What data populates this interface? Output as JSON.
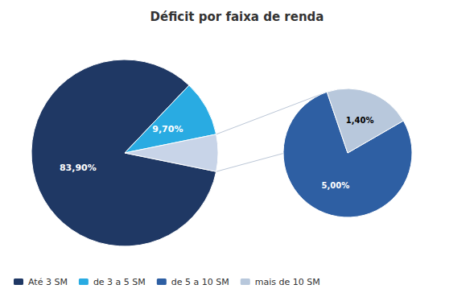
{
  "chart_data": [
    {
      "type": "pie",
      "title": "Déficit por faixa de renda",
      "categories": [
        "Até 3 SM",
        "de 3 a 5 SM",
        null
      ],
      "values": [
        83.9,
        9.7,
        6.4
      ],
      "value_labels": [
        "83,90%",
        "9,70%",
        null
      ],
      "colors": [
        "#1f3864",
        "#29abe2",
        "#c8d4e8"
      ],
      "data_labels": true,
      "legend": "lower left"
    },
    {
      "type": "pie",
      "categories": [
        "de 5 a 10 SM",
        "mais de 10 SM"
      ],
      "values": [
        5.0,
        1.4
      ],
      "value_labels": [
        "5,00%",
        "1,40%"
      ],
      "colors": [
        "#2e5fa3",
        "#b8c8dc"
      ],
      "data_labels": true
    }
  ]
}
